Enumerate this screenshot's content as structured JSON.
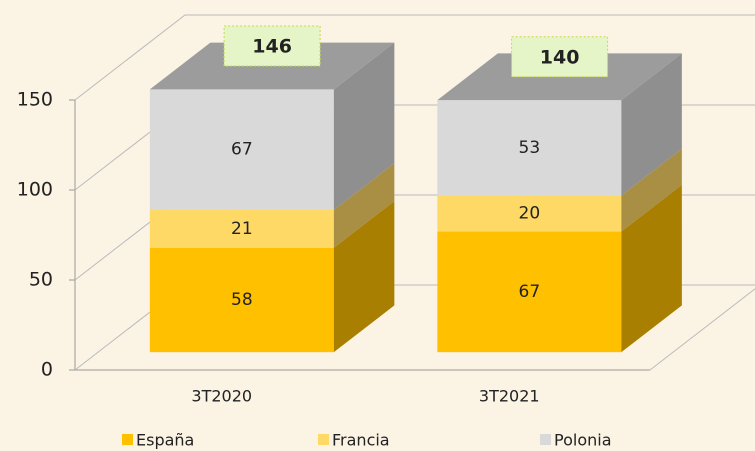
{
  "chart_data": {
    "type": "bar3d-stacked",
    "categories": [
      "3T2020",
      "3T2021"
    ],
    "series": [
      {
        "name": "España",
        "color": "#ffc000",
        "values": [
          58,
          67
        ]
      },
      {
        "name": "Francia",
        "color": "#ffd966",
        "values": [
          21,
          20
        ]
      },
      {
        "name": "Polonia",
        "color": "#d9d9d9",
        "values": [
          67,
          53
        ]
      }
    ],
    "totals": [
      146,
      140
    ],
    "ylim": [
      0,
      150
    ],
    "yticks": [
      0,
      50,
      100,
      150
    ],
    "grid": true
  }
}
